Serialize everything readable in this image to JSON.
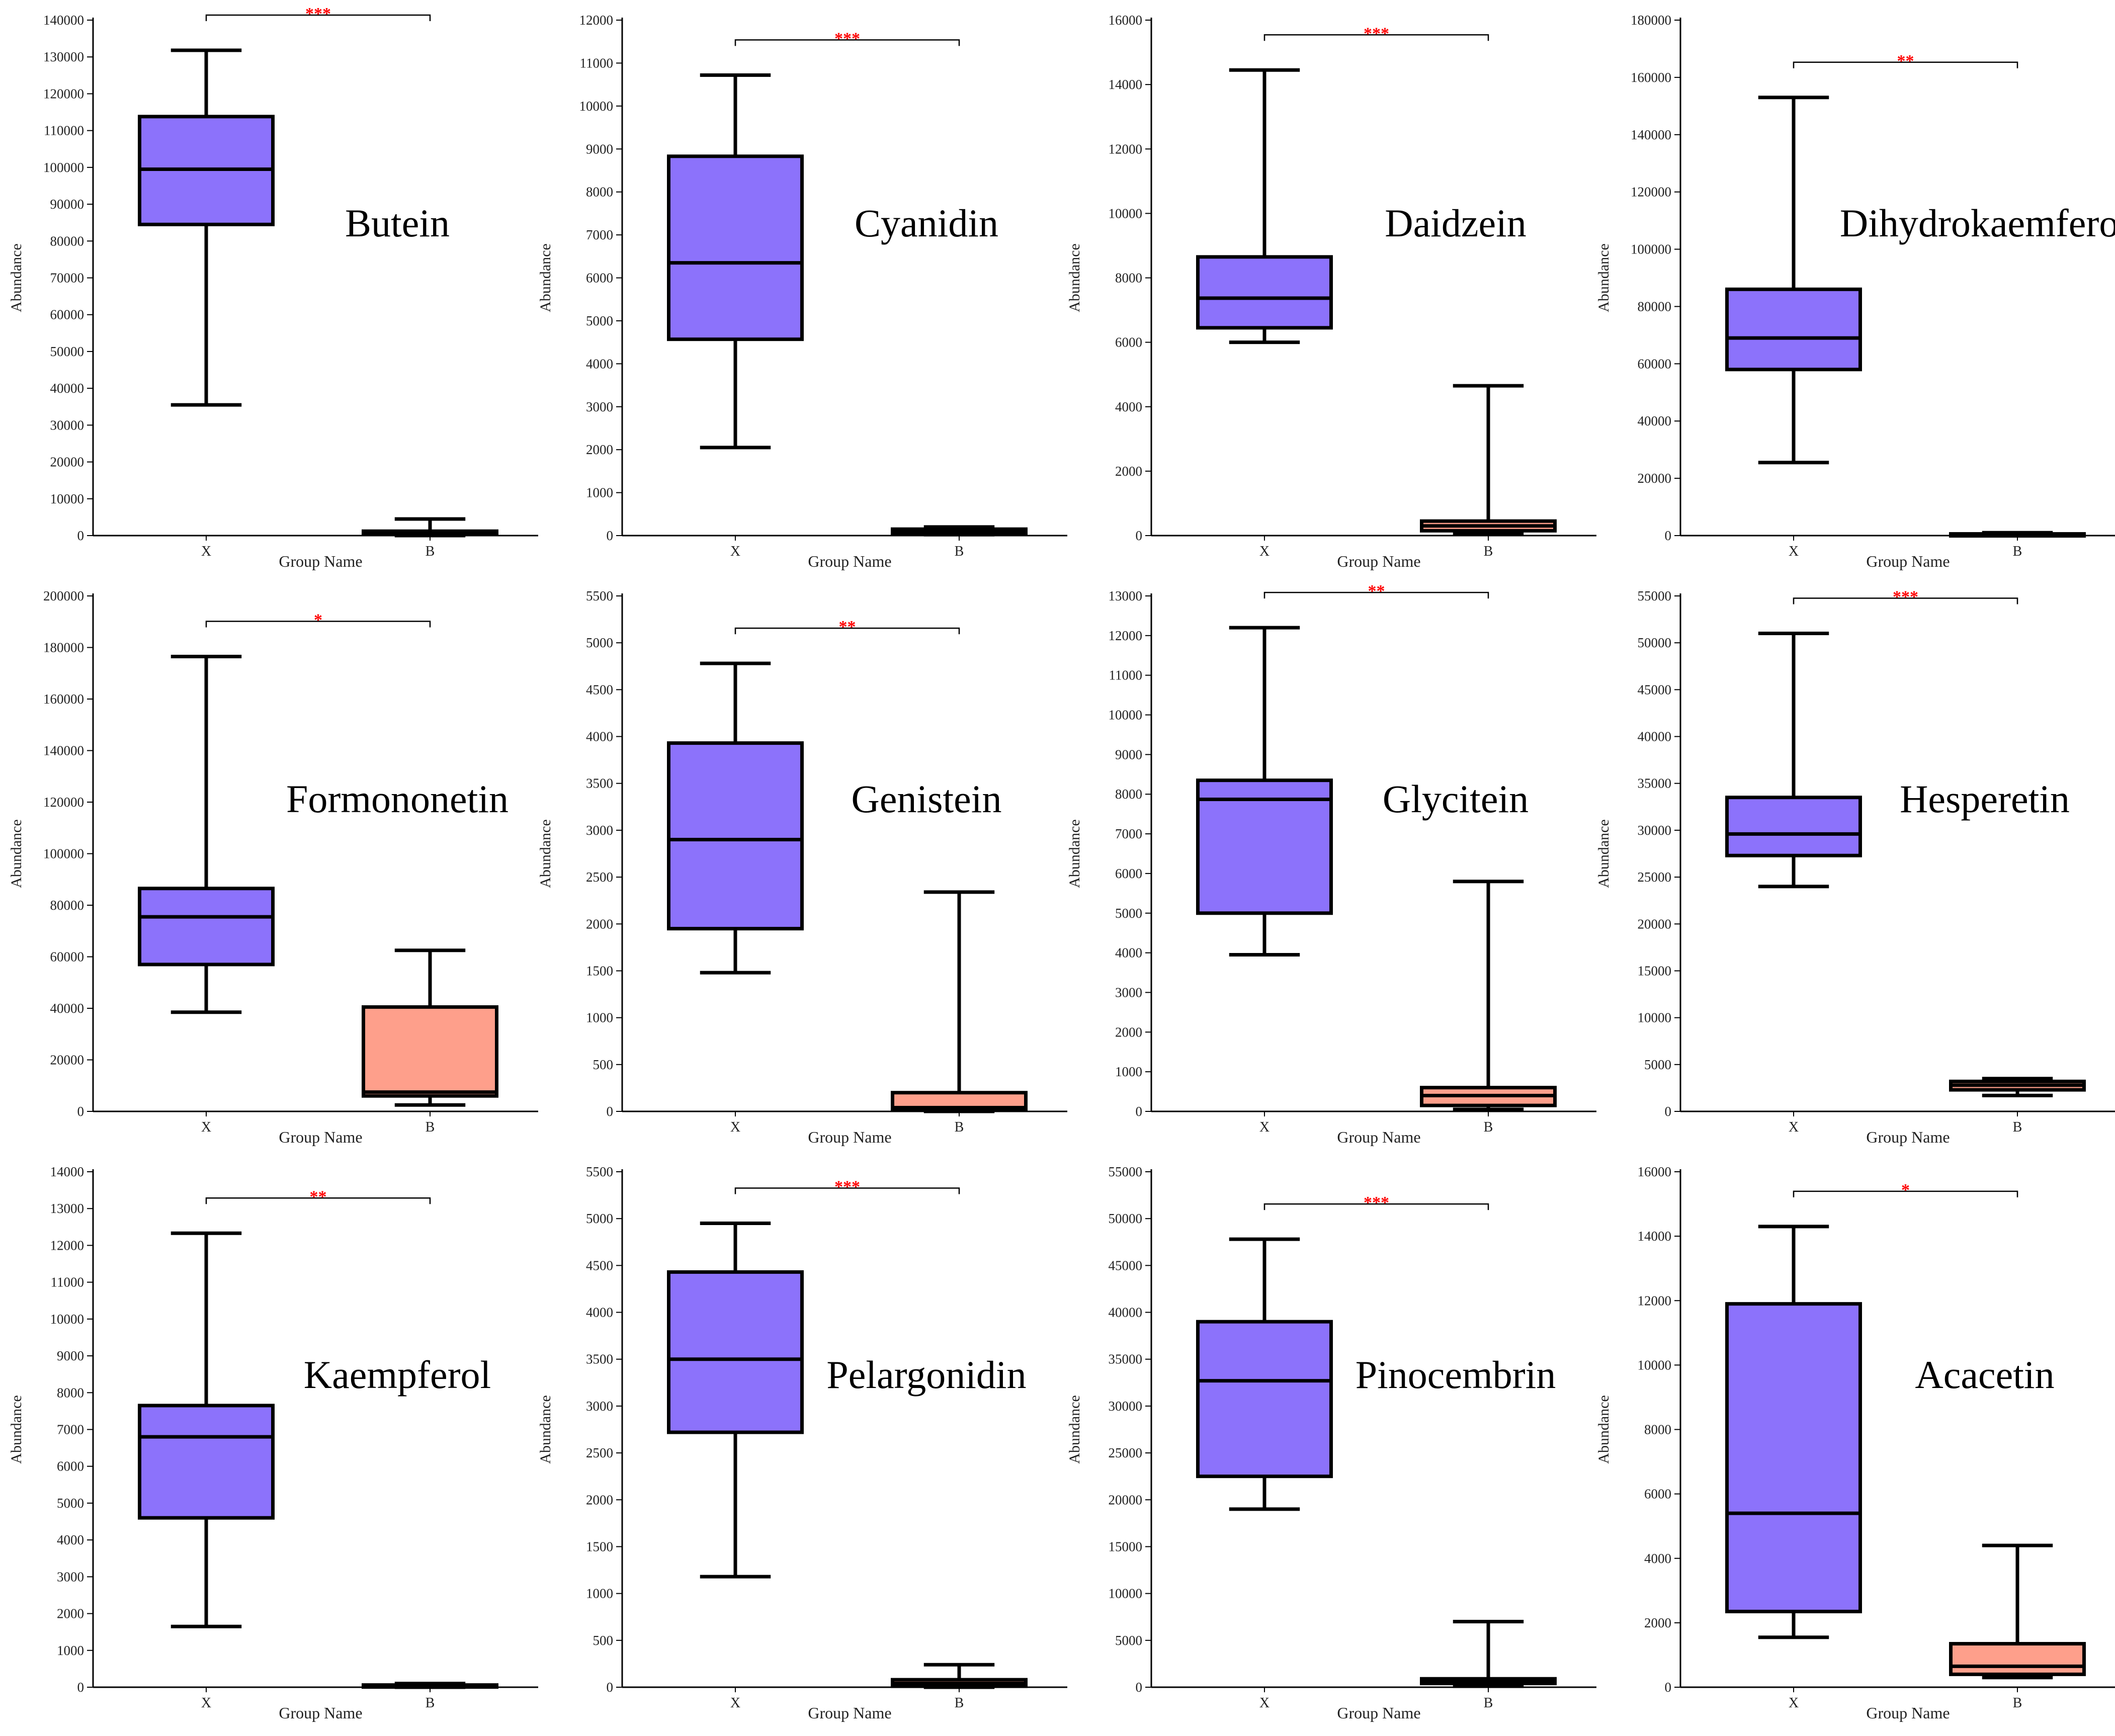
{
  "colors": {
    "group_x": "#8C72FB",
    "group_b": "#FE9F8B",
    "significance": "#FF0000",
    "axis": "#000000"
  },
  "chart_data": [
    {
      "type": "box",
      "title": "Butein",
      "xlabel": "Group Name",
      "ylabel": "Abundance",
      "ylim": [
        0,
        140000
      ],
      "yticks": [
        0,
        10000,
        20000,
        30000,
        40000,
        50000,
        60000,
        70000,
        80000,
        90000,
        100000,
        110000,
        120000,
        130000,
        140000
      ],
      "significance": "***",
      "categories": [
        "X",
        "B"
      ],
      "boxes": [
        {
          "min": 35500,
          "q1": 84500,
          "median": 99500,
          "q3": 113800,
          "max": 131800
        },
        {
          "min": 0,
          "q1": 300,
          "median": 700,
          "q3": 1200,
          "max": 4500
        }
      ]
    },
    {
      "type": "box",
      "title": "Cyanidin",
      "xlabel": "Group Name",
      "ylabel": "Abundance",
      "ylim": [
        0,
        12000
      ],
      "yticks": [
        0,
        1000,
        2000,
        3000,
        4000,
        5000,
        6000,
        7000,
        8000,
        9000,
        10000,
        11000,
        12000
      ],
      "significance": "***",
      "categories": [
        "X",
        "B"
      ],
      "boxes": [
        {
          "min": 2050,
          "q1": 4570,
          "median": 6350,
          "q3": 8830,
          "max": 10720
        },
        {
          "min": 20,
          "q1": 40,
          "median": 80,
          "q3": 150,
          "max": 200
        }
      ]
    },
    {
      "type": "box",
      "title": "Daidzein",
      "xlabel": "Group Name",
      "ylabel": "Abundance",
      "ylim": [
        0,
        16000
      ],
      "yticks": [
        0,
        2000,
        4000,
        6000,
        8000,
        10000,
        12000,
        14000,
        16000
      ],
      "significance": "***",
      "categories": [
        "X",
        "B"
      ],
      "boxes": [
        {
          "min": 6000,
          "q1": 6450,
          "median": 7370,
          "q3": 8650,
          "max": 14450
        },
        {
          "min": 50,
          "q1": 150,
          "median": 300,
          "q3": 450,
          "max": 4650
        }
      ]
    },
    {
      "type": "box",
      "title": "Dihydrokaemferol",
      "xlabel": "Group Name",
      "ylabel": "Abundance",
      "ylim": [
        0,
        180000
      ],
      "yticks": [
        0,
        20000,
        40000,
        60000,
        80000,
        100000,
        120000,
        140000,
        160000,
        180000
      ],
      "significance": "**",
      "categories": [
        "X",
        "B"
      ],
      "boxes": [
        {
          "min": 25500,
          "q1": 58000,
          "median": 69000,
          "q3": 86000,
          "max": 153000
        },
        {
          "min": 0,
          "q1": 200,
          "median": 400,
          "q3": 600,
          "max": 1000
        }
      ]
    },
    {
      "type": "box",
      "title": "Formononetin",
      "xlabel": "Group Name",
      "ylabel": "Abundance",
      "ylim": [
        0,
        200000
      ],
      "yticks": [
        0,
        20000,
        40000,
        60000,
        80000,
        100000,
        120000,
        140000,
        160000,
        180000,
        200000
      ],
      "significance": "*",
      "categories": [
        "X",
        "B"
      ],
      "boxes": [
        {
          "min": 38500,
          "q1": 57000,
          "median": 75500,
          "q3": 86500,
          "max": 176500
        },
        {
          "min": 2500,
          "q1": 6000,
          "median": 7500,
          "q3": 40500,
          "max": 62500
        }
      ]
    },
    {
      "type": "box",
      "title": "Genistein",
      "xlabel": "Group Name",
      "ylabel": "Abundance",
      "ylim": [
        0,
        5500
      ],
      "yticks": [
        0,
        500,
        1000,
        1500,
        2000,
        2500,
        3000,
        3500,
        4000,
        4500,
        5000,
        5500
      ],
      "significance": "**",
      "categories": [
        "X",
        "B"
      ],
      "boxes": [
        {
          "min": 1480,
          "q1": 1950,
          "median": 2900,
          "q3": 3930,
          "max": 4780
        },
        {
          "min": 0,
          "q1": 20,
          "median": 40,
          "q3": 200,
          "max": 2340
        }
      ]
    },
    {
      "type": "box",
      "title": "Glycitein",
      "xlabel": "Group Name",
      "ylabel": "Abundance",
      "ylim": [
        0,
        13000
      ],
      "yticks": [
        0,
        1000,
        2000,
        3000,
        4000,
        5000,
        6000,
        7000,
        8000,
        9000,
        10000,
        11000,
        12000,
        13000
      ],
      "significance": "**",
      "categories": [
        "X",
        "B"
      ],
      "boxes": [
        {
          "min": 3950,
          "q1": 5000,
          "median": 7870,
          "q3": 8350,
          "max": 12200
        },
        {
          "min": 50,
          "q1": 150,
          "median": 400,
          "q3": 600,
          "max": 5800
        }
      ]
    },
    {
      "type": "box",
      "title": "Hesperetin",
      "xlabel": "Group Name",
      "ylabel": "Abundance",
      "ylim": [
        0,
        55000
      ],
      "yticks": [
        0,
        5000,
        10000,
        15000,
        20000,
        25000,
        30000,
        35000,
        40000,
        45000,
        50000,
        55000
      ],
      "significance": "***",
      "categories": [
        "X",
        "B"
      ],
      "boxes": [
        {
          "min": 24000,
          "q1": 27300,
          "median": 29600,
          "q3": 33500,
          "max": 51000
        },
        {
          "min": 1700,
          "q1": 2300,
          "median": 2800,
          "q3": 3200,
          "max": 3500
        }
      ]
    },
    {
      "type": "box",
      "title": "Kaempferol",
      "xlabel": "Group Name",
      "ylabel": "Abundance",
      "ylim": [
        0,
        14000
      ],
      "yticks": [
        0,
        1000,
        2000,
        3000,
        4000,
        5000,
        6000,
        7000,
        8000,
        9000,
        10000,
        11000,
        12000,
        13000,
        14000
      ],
      "significance": "**",
      "categories": [
        "X",
        "B"
      ],
      "boxes": [
        {
          "min": 1650,
          "q1": 4600,
          "median": 6800,
          "q3": 7650,
          "max": 12330
        },
        {
          "min": 0,
          "q1": 20,
          "median": 40,
          "q3": 60,
          "max": 100
        }
      ]
    },
    {
      "type": "box",
      "title": "Pelargonidin",
      "xlabel": "Group Name",
      "ylabel": "Abundance",
      "ylim": [
        0,
        5500
      ],
      "yticks": [
        0,
        500,
        1000,
        1500,
        2000,
        2500,
        3000,
        3500,
        4000,
        4500,
        5000,
        5500
      ],
      "significance": "***",
      "categories": [
        "X",
        "B"
      ],
      "boxes": [
        {
          "min": 1180,
          "q1": 2720,
          "median": 3500,
          "q3": 4430,
          "max": 4950
        },
        {
          "min": 0,
          "q1": 10,
          "median": 40,
          "q3": 80,
          "max": 240
        }
      ]
    },
    {
      "type": "box",
      "title": "Pinocembrin",
      "xlabel": "Group Name",
      "ylabel": "Abundance",
      "ylim": [
        0,
        55000
      ],
      "yticks": [
        0,
        5000,
        10000,
        15000,
        20000,
        25000,
        30000,
        35000,
        40000,
        45000,
        50000,
        55000
      ],
      "significance": "***",
      "categories": [
        "X",
        "B"
      ],
      "boxes": [
        {
          "min": 19000,
          "q1": 22500,
          "median": 32700,
          "q3": 39000,
          "max": 47800
        },
        {
          "min": 100,
          "q1": 400,
          "median": 600,
          "q3": 900,
          "max": 7000
        }
      ]
    },
    {
      "type": "box",
      "title": "Acacetin",
      "xlabel": "Group Name",
      "ylabel": "Abundance",
      "ylim": [
        0,
        16000
      ],
      "yticks": [
        0,
        2000,
        4000,
        6000,
        8000,
        10000,
        12000,
        14000,
        16000
      ],
      "significance": "*",
      "categories": [
        "X",
        "B"
      ],
      "boxes": [
        {
          "min": 1550,
          "q1": 2350,
          "median": 5400,
          "q3": 11900,
          "max": 14300
        },
        {
          "min": 300,
          "q1": 400,
          "median": 650,
          "q3": 1350,
          "max": 4400
        }
      ]
    }
  ]
}
